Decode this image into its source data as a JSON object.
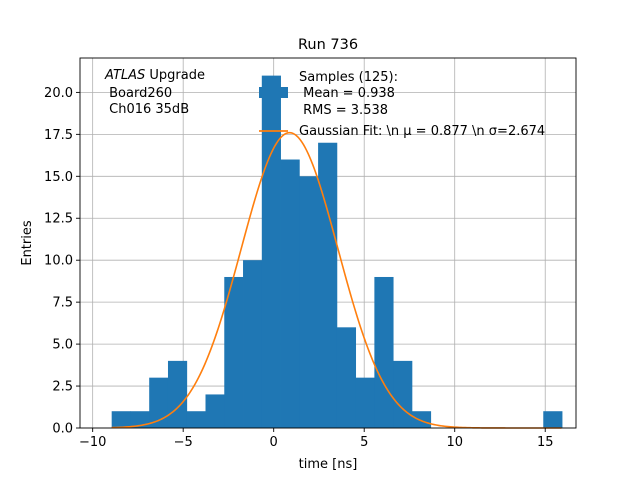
{
  "chart_data": {
    "type": "bar",
    "title": "Run 736",
    "xlabel": "time [ns]",
    "ylabel": "Entries",
    "xlim": [
      -10.7,
      16.7
    ],
    "ylim": [
      0,
      22.05
    ],
    "grid": true,
    "bin_width": 1.0366,
    "bins": [
      {
        "x0": -8.95,
        "value": 1
      },
      {
        "x0": -7.913,
        "value": 1
      },
      {
        "x0": -6.877,
        "value": 3
      },
      {
        "x0": -5.84,
        "value": 4
      },
      {
        "x0": -4.804,
        "value": 1
      },
      {
        "x0": -3.767,
        "value": 2
      },
      {
        "x0": -2.73,
        "value": 9
      },
      {
        "x0": -1.694,
        "value": 10
      },
      {
        "x0": -0.657,
        "value": 21
      },
      {
        "x0": 0.379,
        "value": 16
      },
      {
        "x0": 1.416,
        "value": 15
      },
      {
        "x0": 2.453,
        "value": 17
      },
      {
        "x0": 3.489,
        "value": 6
      },
      {
        "x0": 4.526,
        "value": 3
      },
      {
        "x0": 5.562,
        "value": 9
      },
      {
        "x0": 6.599,
        "value": 4
      },
      {
        "x0": 7.636,
        "value": 1
      },
      {
        "x0": 8.672,
        "value": 0
      },
      {
        "x0": 9.709,
        "value": 0
      },
      {
        "x0": 10.745,
        "value": 0
      },
      {
        "x0": 11.782,
        "value": 0
      },
      {
        "x0": 12.819,
        "value": 0
      },
      {
        "x0": 13.855,
        "value": 0
      },
      {
        "x0": 14.892,
        "value": 1
      }
    ],
    "fit": {
      "amplitude": 17.6,
      "mu": 0.877,
      "sigma": 2.674,
      "x_start": -8.95,
      "x_end": 15.9
    },
    "x_ticks": [
      -10,
      -5,
      0,
      5,
      10,
      15
    ],
    "x_tick_labels": [
      "−10",
      "−5",
      "0",
      "5",
      "10",
      "15"
    ],
    "y_ticks": [
      0,
      2.5,
      5,
      7.5,
      10,
      12.5,
      15,
      17.5,
      20
    ],
    "y_tick_labels": [
      "0.0",
      "2.5",
      "5.0",
      "7.5",
      "10.0",
      "12.5",
      "15.0",
      "17.5",
      "20.0"
    ],
    "annotation": {
      "line1_italic": "ATLAS",
      "line1_rest": " Upgrade",
      "line2": " Board260",
      "line3": " Ch016 35dB"
    },
    "legend": {
      "placement": "upper-right",
      "hist_label_lines": [
        "Samples (125):",
        " Mean = 0.938",
        " RMS = 3.538"
      ],
      "fit_label": "Gaussian Fit: \\n μ = 0.877 \\n σ=2.674"
    },
    "colors": {
      "bar": "#1f77b4",
      "fit": "#ff7f0e",
      "grid": "#b0b0b0",
      "axes": "#000000"
    }
  }
}
